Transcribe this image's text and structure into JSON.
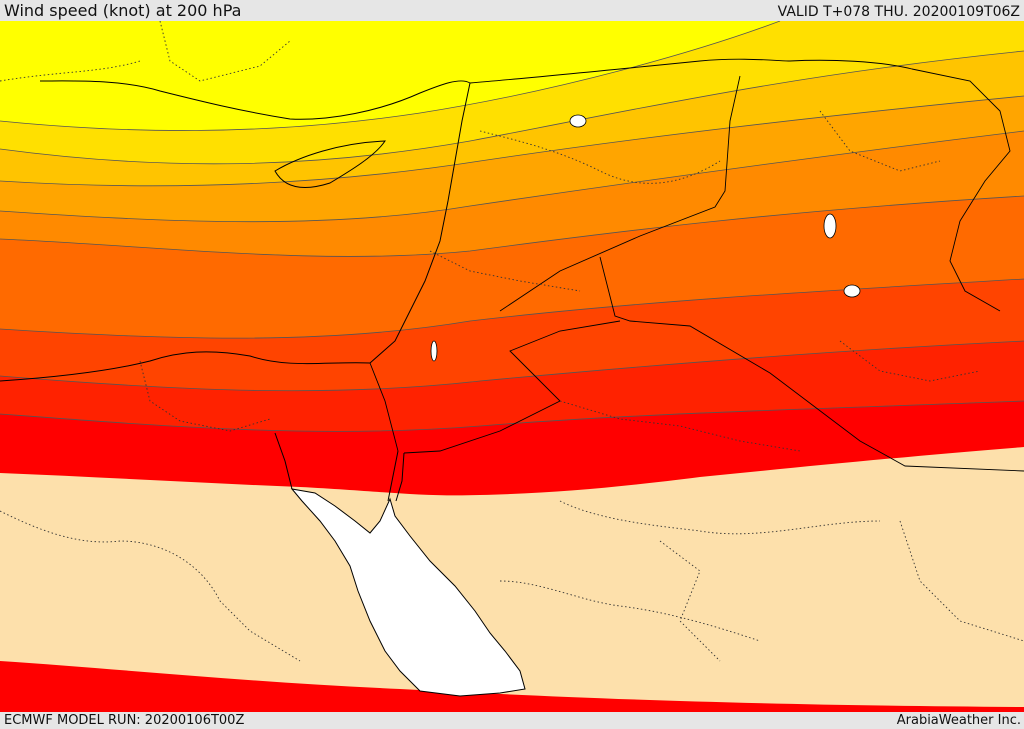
{
  "header": {
    "title": "Wind speed (knot) at 200 hPa",
    "valid_time": "VALID T+078 THU. 20200109T06Z"
  },
  "footer": {
    "model_run": "ECMWF MODEL RUN: 20200106T00Z",
    "credit": "ArabiaWeather Inc."
  },
  "map": {
    "field": "wind-speed-200hPa",
    "colors": {
      "band_1": "#ffff00",
      "band_2": "#ffe000",
      "band_3": "#ffc400",
      "band_4": "#ffa500",
      "band_5": "#ff8a00",
      "band_6": "#ff6a00",
      "band_7": "#ff4400",
      "band_8": "#ff2200",
      "band_9": "#ff0000",
      "below_threshold": "#fde0ab",
      "sea_unshaded": "#ffffff",
      "contour_line": "#555555",
      "coastline": "#000000"
    }
  }
}
